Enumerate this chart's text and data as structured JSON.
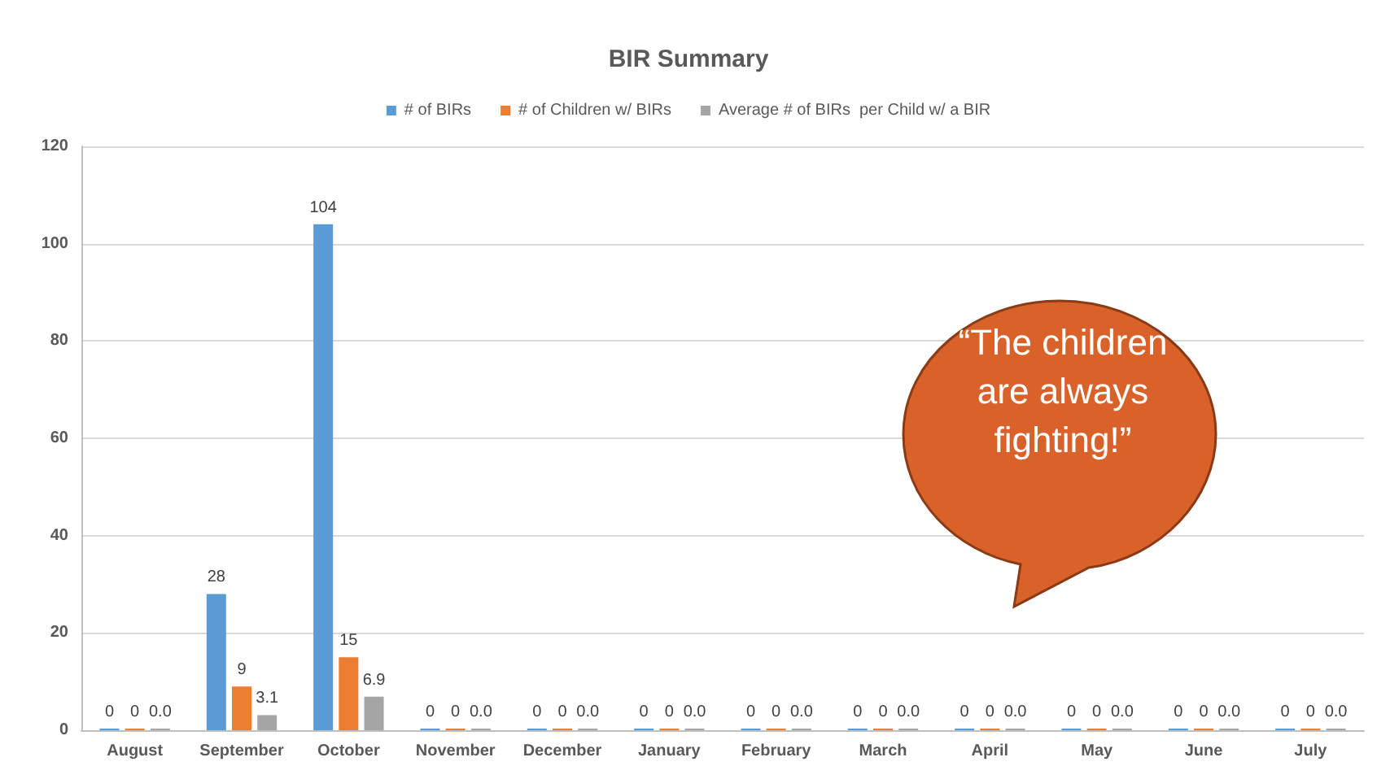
{
  "chart_data": {
    "type": "bar",
    "title": "BIR Summary",
    "categories": [
      "August",
      "September",
      "October",
      "November",
      "December",
      "January",
      "February",
      "March",
      "April",
      "May",
      "June",
      "July"
    ],
    "series": [
      {
        "name": "# of BIRs",
        "color": "#5b9bd5",
        "values": [
          0,
          28,
          104,
          0,
          0,
          0,
          0,
          0,
          0,
          0,
          0,
          0
        ],
        "value_labels": [
          "0",
          "28",
          "104",
          "0",
          "0",
          "0",
          "0",
          "0",
          "0",
          "0",
          "0",
          "0"
        ]
      },
      {
        "name": "# of Children w/ BIRs",
        "color": "#ed7d31",
        "values": [
          0,
          9,
          15,
          0,
          0,
          0,
          0,
          0,
          0,
          0,
          0,
          0
        ],
        "value_labels": [
          "0",
          "9",
          "15",
          "0",
          "0",
          "0",
          "0",
          "0",
          "0",
          "0",
          "0",
          "0"
        ]
      },
      {
        "name": "Average # of BIRs  per Child w/ a BIR",
        "color": "#a5a5a5",
        "values": [
          0,
          3.1,
          6.9,
          0,
          0,
          0,
          0,
          0,
          0,
          0,
          0,
          0
        ],
        "value_labels": [
          "0.0",
          "3.1",
          "6.9",
          "0.0",
          "0.0",
          "0.0",
          "0.0",
          "0.0",
          "0.0",
          "0.0",
          "0.0",
          "0.0"
        ]
      }
    ],
    "ylim": [
      0,
      120
    ],
    "yticks": [
      0,
      20,
      40,
      60,
      80,
      100,
      120
    ],
    "grid": "y",
    "legend": "top",
    "annotations": [
      "“The children are always fighting!”"
    ]
  }
}
